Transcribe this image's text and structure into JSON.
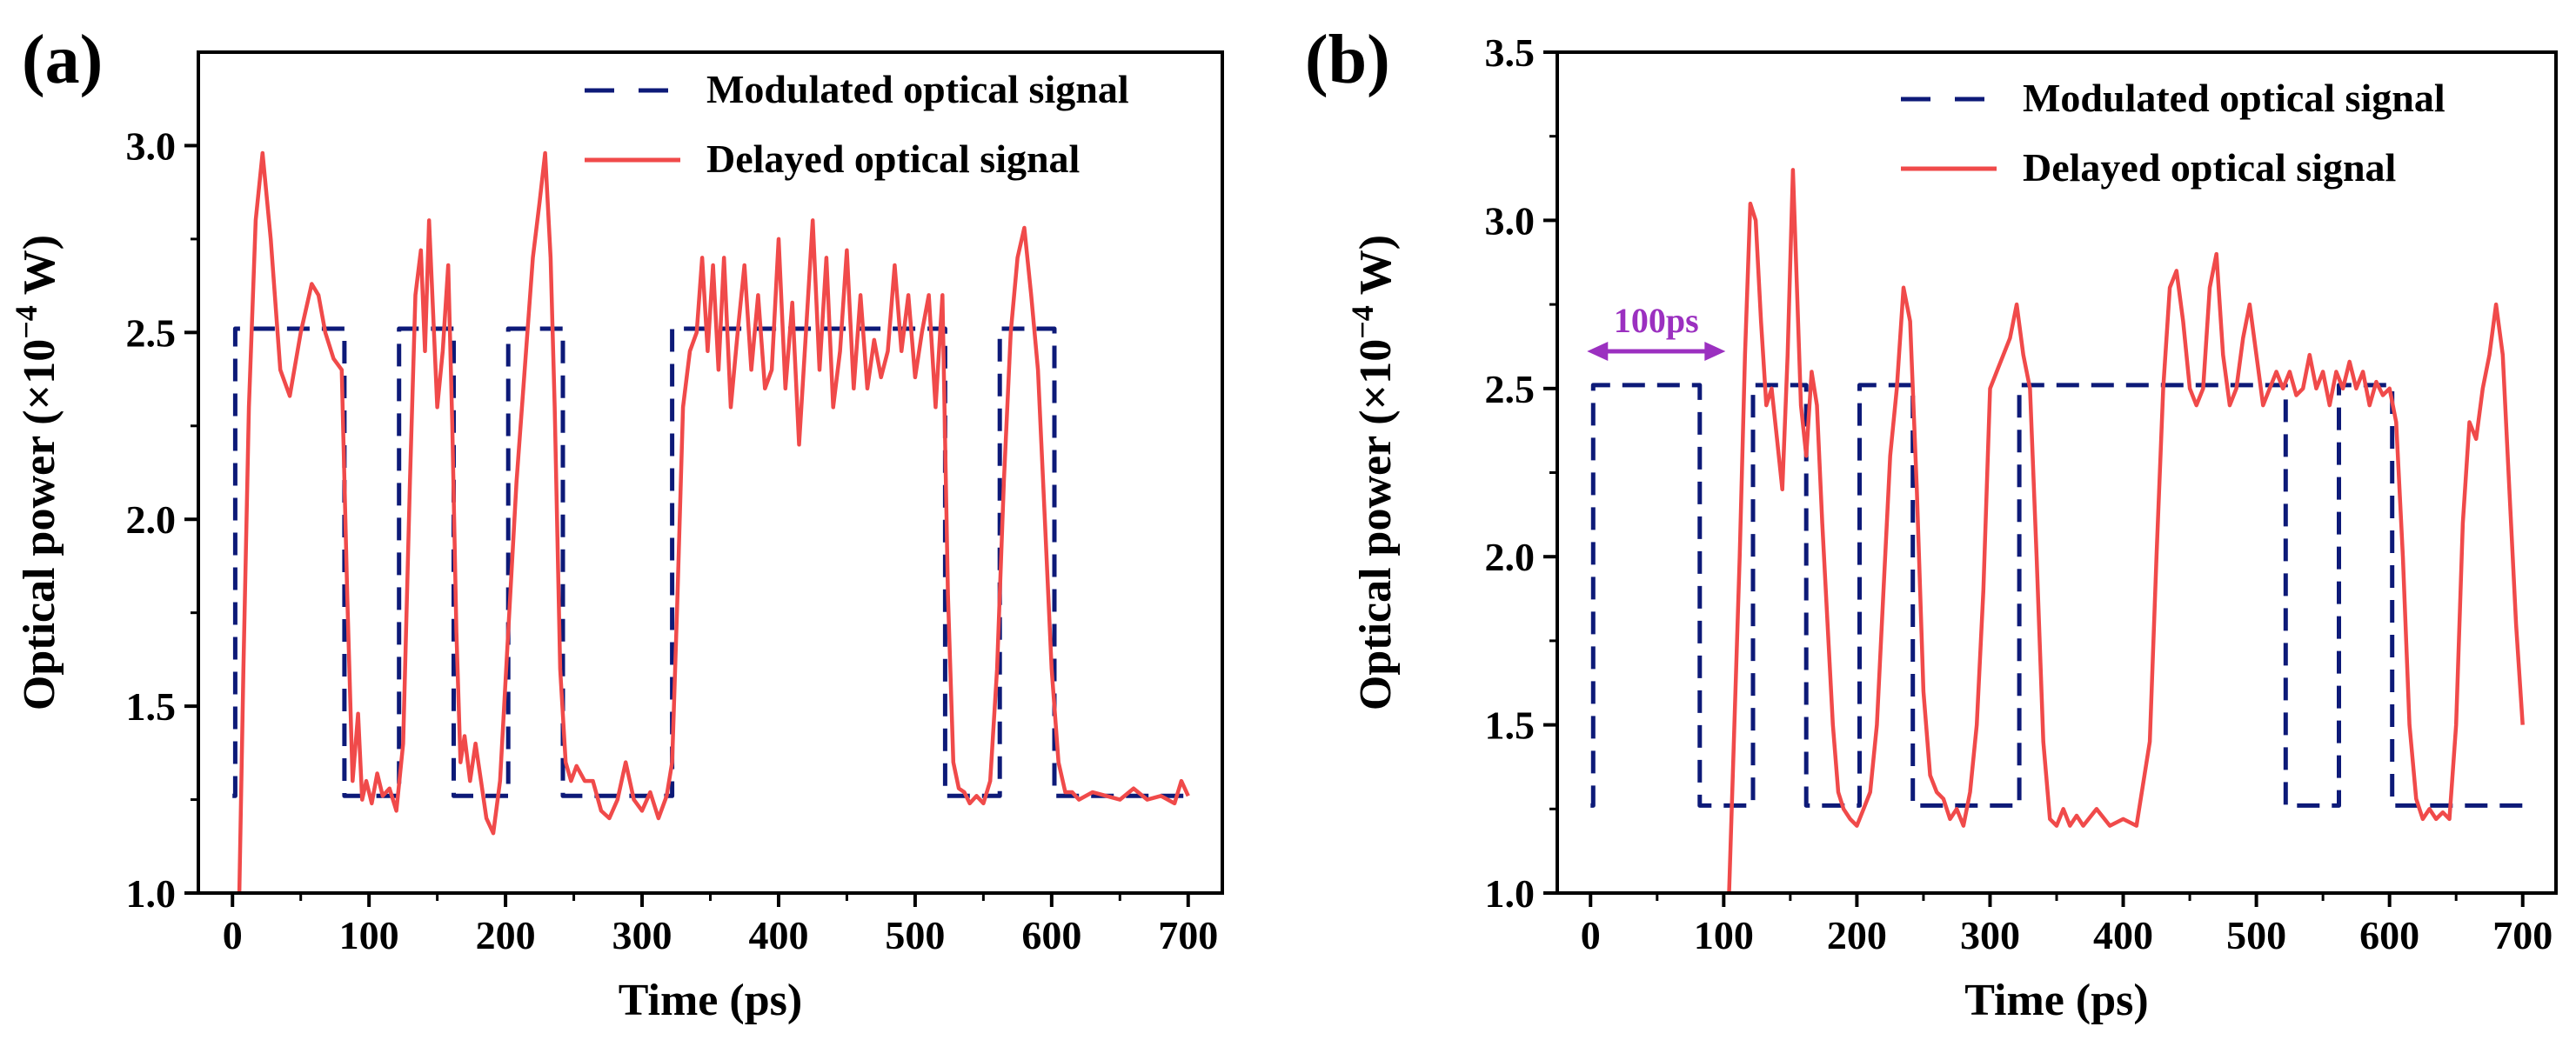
{
  "chart_data": [
    {
      "panel_label": "(a)",
      "type": "line",
      "xlabel": "Time (ps)",
      "ylabel_prefix": "Optical power (×10",
      "ylabel_exp": "−4",
      "ylabel_suffix": " W)",
      "xlim": [
        -25,
        725
      ],
      "ylim": [
        1.0,
        3.25
      ],
      "xticks": [
        0,
        100,
        200,
        300,
        400,
        500,
        600,
        700
      ],
      "yticks": [
        1.0,
        1.5,
        2.0,
        2.5,
        3.0
      ],
      "ytick_labels": [
        "1.0",
        "1.5",
        "2.0",
        "2.5",
        "3.0"
      ],
      "legend": [
        "Modulated optical signal",
        "Delayed optical signal"
      ],
      "series": [
        {
          "name": "Modulated optical signal",
          "style": "dashed",
          "color": "#0d1a78",
          "x": [
            0,
            2,
            2,
            82,
            82,
            122,
            122,
            162,
            162,
            202,
            202,
            242,
            242,
            322,
            322,
            522,
            522,
            562,
            562,
            602,
            602,
            700
          ],
          "y": [
            1.26,
            1.26,
            2.51,
            2.51,
            1.26,
            1.26,
            2.51,
            2.51,
            1.26,
            1.26,
            2.51,
            2.51,
            1.26,
            1.26,
            2.51,
            2.51,
            1.26,
            1.26,
            2.51,
            2.51,
            1.26,
            1.26
          ]
        },
        {
          "name": "Delayed optical signal",
          "style": "solid",
          "color": "#f04a4a",
          "x": [
            5,
            8,
            12,
            17,
            22,
            28,
            35,
            42,
            50,
            58,
            63,
            68,
            74,
            80,
            84,
            88,
            92,
            95,
            98,
            102,
            106,
            110,
            115,
            120,
            125,
            130,
            134,
            138,
            141,
            144,
            147,
            150,
            154,
            158,
            161,
            164,
            167,
            170,
            174,
            178,
            182,
            186,
            191,
            196,
            202,
            208,
            214,
            220,
            225,
            229,
            233,
            236,
            240,
            244,
            248,
            252,
            258,
            264,
            270,
            276,
            282,
            288,
            294,
            300,
            306,
            312,
            318,
            322,
            326,
            330,
            335,
            340,
            344,
            348,
            352,
            356,
            360,
            365,
            370,
            375,
            380,
            385,
            390,
            395,
            400,
            405,
            410,
            415,
            420,
            425,
            430,
            435,
            440,
            445,
            450,
            455,
            460,
            465,
            470,
            475,
            480,
            485,
            490,
            495,
            500,
            505,
            510,
            515,
            520,
            524,
            528,
            532,
            536,
            540,
            545,
            550,
            555,
            560,
            565,
            570,
            575,
            580,
            585,
            590,
            595,
            600,
            605,
            610,
            615,
            620,
            630,
            640,
            650,
            660,
            670,
            680,
            690,
            695,
            700
          ],
          "y": [
            1.0,
            1.6,
            2.3,
            2.8,
            2.98,
            2.75,
            2.4,
            2.33,
            2.5,
            2.63,
            2.6,
            2.5,
            2.43,
            2.4,
            1.8,
            1.3,
            1.48,
            1.25,
            1.3,
            1.24,
            1.32,
            1.26,
            1.28,
            1.22,
            1.4,
            2.1,
            2.6,
            2.72,
            2.45,
            2.8,
            2.55,
            2.3,
            2.45,
            2.68,
            2.25,
            1.7,
            1.35,
            1.42,
            1.3,
            1.4,
            1.3,
            1.2,
            1.16,
            1.3,
            1.7,
            2.1,
            2.4,
            2.7,
            2.85,
            2.98,
            2.7,
            2.3,
            1.6,
            1.35,
            1.3,
            1.34,
            1.3,
            1.3,
            1.22,
            1.2,
            1.25,
            1.35,
            1.25,
            1.22,
            1.27,
            1.2,
            1.26,
            1.35,
            1.8,
            2.3,
            2.45,
            2.5,
            2.7,
            2.45,
            2.68,
            2.4,
            2.7,
            2.3,
            2.5,
            2.68,
            2.4,
            2.6,
            2.35,
            2.4,
            2.75,
            2.35,
            2.58,
            2.2,
            2.5,
            2.8,
            2.4,
            2.7,
            2.3,
            2.45,
            2.72,
            2.35,
            2.6,
            2.35,
            2.48,
            2.38,
            2.45,
            2.68,
            2.45,
            2.6,
            2.38,
            2.5,
            2.6,
            2.3,
            2.6,
            1.8,
            1.35,
            1.28,
            1.27,
            1.24,
            1.26,
            1.24,
            1.3,
            1.6,
            2.1,
            2.5,
            2.7,
            2.78,
            2.6,
            2.4,
            2.0,
            1.6,
            1.35,
            1.27,
            1.27,
            1.25,
            1.27,
            1.26,
            1.25,
            1.28,
            1.25,
            1.26,
            1.24,
            1.3,
            1.26
          ]
        }
      ]
    },
    {
      "panel_label": "(b)",
      "type": "line",
      "xlabel": "Time (ps)",
      "ylabel_prefix": "Optical power (×10",
      "ylabel_exp": "−4",
      "ylabel_suffix": " W)",
      "xlim": [
        -25,
        725
      ],
      "ylim": [
        1.0,
        3.5
      ],
      "xticks": [
        0,
        100,
        200,
        300,
        400,
        500,
        600,
        700
      ],
      "yticks": [
        1.0,
        1.5,
        2.0,
        2.5,
        3.0,
        3.5
      ],
      "ytick_labels": [
        "1.0",
        "1.5",
        "2.0",
        "2.5",
        "3.0",
        "3.5"
      ],
      "legend": [
        "Modulated optical signal",
        "Delayed optical signal"
      ],
      "annotation": {
        "text": "100ps",
        "x_start": 0,
        "x_end": 100
      },
      "series": [
        {
          "name": "Modulated optical signal",
          "style": "dashed",
          "color": "#0d1a78",
          "x": [
            0,
            2,
            2,
            82,
            82,
            122,
            122,
            162,
            162,
            202,
            202,
            242,
            242,
            322,
            322,
            522,
            522,
            562,
            562,
            602,
            602,
            700
          ],
          "y": [
            1.26,
            1.26,
            2.51,
            2.51,
            1.26,
            1.26,
            2.51,
            2.51,
            1.26,
            1.26,
            2.51,
            2.51,
            1.26,
            1.26,
            2.51,
            2.51,
            1.26,
            1.26,
            2.51,
            2.51,
            1.26,
            1.26
          ]
        },
        {
          "name": "Delayed optical signal",
          "style": "solid",
          "color": "#f04a4a",
          "x": [
            104,
            108,
            112,
            116,
            120,
            124,
            128,
            132,
            136,
            140,
            144,
            148,
            152,
            155,
            158,
            162,
            166,
            170,
            174,
            178,
            182,
            186,
            190,
            195,
            200,
            205,
            210,
            215,
            220,
            225,
            230,
            235,
            240,
            245,
            250,
            255,
            260,
            265,
            270,
            275,
            280,
            285,
            290,
            295,
            300,
            305,
            310,
            315,
            320,
            325,
            330,
            335,
            340,
            345,
            350,
            355,
            360,
            365,
            370,
            380,
            390,
            400,
            410,
            420,
            425,
            430,
            435,
            440,
            445,
            450,
            455,
            460,
            465,
            470,
            475,
            480,
            485,
            490,
            495,
            500,
            505,
            510,
            515,
            520,
            525,
            530,
            535,
            540,
            545,
            550,
            555,
            560,
            565,
            570,
            575,
            580,
            585,
            590,
            595,
            600,
            605,
            610,
            615,
            620,
            625,
            630,
            635,
            640,
            645,
            650,
            655,
            660,
            665,
            670,
            675,
            680,
            685,
            690,
            695,
            700
          ],
          "y": [
            1.0,
            1.5,
            2.0,
            2.6,
            3.05,
            3.0,
            2.7,
            2.45,
            2.5,
            2.35,
            2.2,
            2.6,
            3.15,
            2.8,
            2.45,
            2.3,
            2.55,
            2.45,
            2.1,
            1.8,
            1.5,
            1.3,
            1.25,
            1.22,
            1.2,
            1.25,
            1.3,
            1.5,
            1.9,
            2.3,
            2.5,
            2.8,
            2.7,
            2.2,
            1.6,
            1.35,
            1.3,
            1.28,
            1.22,
            1.25,
            1.2,
            1.3,
            1.5,
            1.9,
            2.5,
            2.55,
            2.6,
            2.65,
            2.75,
            2.6,
            2.5,
            2.0,
            1.45,
            1.22,
            1.2,
            1.25,
            1.2,
            1.23,
            1.2,
            1.25,
            1.2,
            1.22,
            1.2,
            1.45,
            2.0,
            2.5,
            2.8,
            2.85,
            2.7,
            2.5,
            2.45,
            2.5,
            2.8,
            2.9,
            2.6,
            2.45,
            2.5,
            2.65,
            2.75,
            2.6,
            2.45,
            2.5,
            2.55,
            2.5,
            2.55,
            2.48,
            2.5,
            2.6,
            2.5,
            2.55,
            2.45,
            2.55,
            2.5,
            2.58,
            2.5,
            2.55,
            2.45,
            2.52,
            2.48,
            2.5,
            2.4,
            2.0,
            1.5,
            1.28,
            1.22,
            1.25,
            1.22,
            1.24,
            1.22,
            1.5,
            2.1,
            2.4,
            2.35,
            2.5,
            2.6,
            2.75,
            2.6,
            2.2,
            1.8,
            1.5
          ]
        }
      ]
    }
  ]
}
